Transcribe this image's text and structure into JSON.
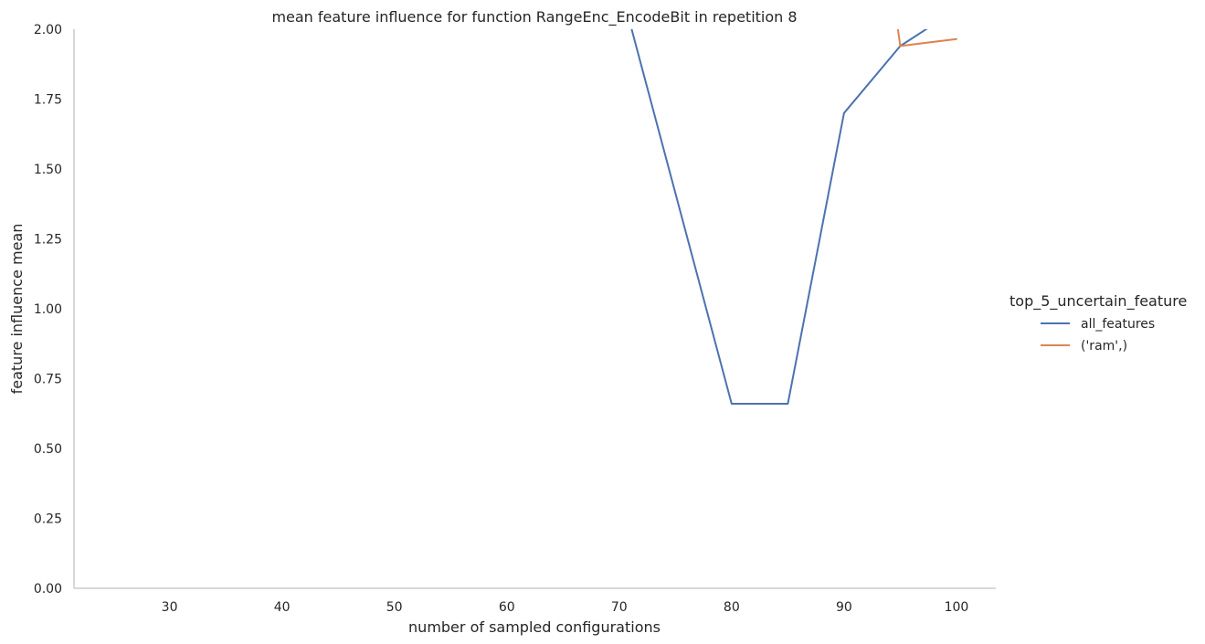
{
  "chart_data": {
    "type": "line",
    "title": "mean feature influence for function RangeEnc_EncodeBit in repetition 8",
    "xlabel": "number of sampled configurations",
    "ylabel": "feature influence mean",
    "xlim": [
      21.5,
      103.5
    ],
    "ylim": [
      0,
      2
    ],
    "xticks": [
      "30",
      "40",
      "50",
      "60",
      "70",
      "80",
      "90",
      "100"
    ],
    "yticks": [
      "0.00",
      "0.25",
      "0.50",
      "0.75",
      "1.00",
      "1.25",
      "1.50",
      "1.75",
      "2.00"
    ],
    "grid": false,
    "legend": {
      "title": "top_5_uncertain_feature",
      "placement": "right"
    },
    "series": [
      {
        "name": "all_features",
        "color": "#4c72b0",
        "x": [
          65,
          80,
          85,
          90,
          95,
          100
        ],
        "y": [
          2.92,
          0.66,
          0.66,
          1.7,
          1.94,
          2.07
        ]
      },
      {
        "name": "('ram',)",
        "color": "#dd8452",
        "x": [
          90,
          95,
          100
        ],
        "y": [
          3.4,
          1.94,
          1.965
        ]
      }
    ]
  }
}
